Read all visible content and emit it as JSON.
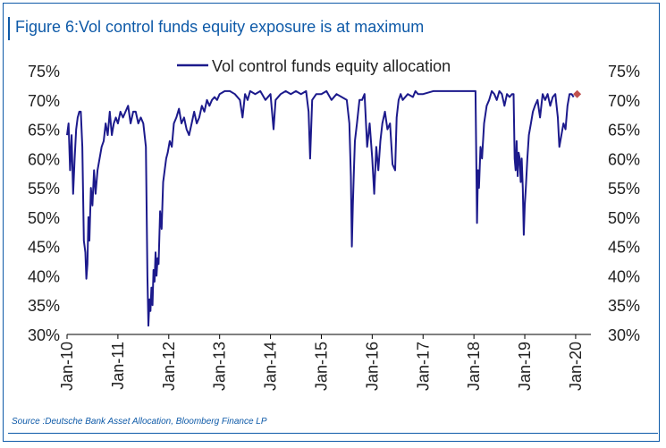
{
  "figure": {
    "title": "Figure 6:Vol control funds equity exposure is at maximum",
    "source": "Source :Deutsche Bank Asset Allocation, Bloomberg Finance LP"
  },
  "chart_data": {
    "type": "line",
    "title": "Figure 6:Vol control funds equity exposure is at maximum",
    "xlabel": "",
    "ylabel": "",
    "ylim": [
      30,
      75
    ],
    "y_ticks": [
      "30%",
      "35%",
      "40%",
      "45%",
      "50%",
      "55%",
      "60%",
      "65%",
      "70%",
      "75%"
    ],
    "y_tick_values": [
      30,
      35,
      40,
      45,
      50,
      55,
      60,
      65,
      70,
      75
    ],
    "x_ticks": [
      "Jan-10",
      "Jan-11",
      "Jan-12",
      "Jan-13",
      "Jan-14",
      "Jan-15",
      "Jan-16",
      "Jan-17",
      "Jan-18",
      "Jan-19",
      "Jan-20"
    ],
    "x_tick_values": [
      2010,
      2011,
      2012,
      2013,
      2014,
      2015,
      2016,
      2017,
      2018,
      2019,
      2020
    ],
    "xlim": [
      2010,
      2020.3
    ],
    "legend": {
      "position": "top-center"
    },
    "grid": false,
    "series": [
      {
        "name": "Vol control funds equity allocation",
        "color": "#1c1a8c",
        "x": [
          2010.0,
          2010.03,
          2010.06,
          2010.09,
          2010.12,
          2010.15,
          2010.18,
          2010.21,
          2010.24,
          2010.27,
          2010.3,
          2010.33,
          2010.36,
          2010.38,
          2010.4,
          2010.42,
          2010.44,
          2010.47,
          2010.5,
          2010.53,
          2010.56,
          2010.6,
          2010.64,
          2010.68,
          2010.72,
          2010.76,
          2010.8,
          2010.84,
          2010.88,
          2010.92,
          2010.96,
          2011.0,
          2011.05,
          2011.1,
          2011.15,
          2011.2,
          2011.25,
          2011.3,
          2011.35,
          2011.4,
          2011.45,
          2011.5,
          2011.55,
          2011.58,
          2011.6,
          2011.62,
          2011.64,
          2011.66,
          2011.68,
          2011.7,
          2011.72,
          2011.74,
          2011.76,
          2011.78,
          2011.8,
          2011.83,
          2011.86,
          2011.89,
          2011.92,
          2011.95,
          2011.98,
          2012.02,
          2012.06,
          2012.1,
          2012.15,
          2012.2,
          2012.25,
          2012.3,
          2012.35,
          2012.4,
          2012.45,
          2012.5,
          2012.55,
          2012.6,
          2012.65,
          2012.7,
          2012.75,
          2012.8,
          2012.85,
          2012.9,
          2012.95,
          2013.0,
          2013.1,
          2013.2,
          2013.3,
          2013.4,
          2013.45,
          2013.5,
          2013.55,
          2013.6,
          2013.7,
          2013.8,
          2013.9,
          2014.0,
          2014.06,
          2014.1,
          2014.2,
          2014.3,
          2014.4,
          2014.5,
          2014.6,
          2014.7,
          2014.75,
          2014.78,
          2014.82,
          2014.9,
          2015.0,
          2015.1,
          2015.2,
          2015.3,
          2015.4,
          2015.5,
          2015.55,
          2015.58,
          2015.6,
          2015.62,
          2015.64,
          2015.66,
          2015.7,
          2015.75,
          2015.8,
          2015.85,
          2015.9,
          2015.95,
          2016.0,
          2016.04,
          2016.08,
          2016.12,
          2016.16,
          2016.2,
          2016.25,
          2016.3,
          2016.35,
          2016.4,
          2016.45,
          2016.48,
          2016.52,
          2016.56,
          2016.6,
          2016.7,
          2016.8,
          2016.85,
          2016.9,
          2017.0,
          2017.2,
          2017.4,
          2017.6,
          2017.8,
          2018.0,
          2018.03,
          2018.06,
          2018.08,
          2018.1,
          2018.13,
          2018.16,
          2018.2,
          2018.25,
          2018.3,
          2018.35,
          2018.4,
          2018.45,
          2018.5,
          2018.55,
          2018.6,
          2018.65,
          2018.7,
          2018.75,
          2018.78,
          2018.8,
          2018.82,
          2018.84,
          2018.86,
          2018.88,
          2018.9,
          2018.92,
          2018.94,
          2018.96,
          2018.98,
          2019.0,
          2019.02,
          2019.05,
          2019.08,
          2019.12,
          2019.16,
          2019.2,
          2019.25,
          2019.3,
          2019.35,
          2019.4,
          2019.45,
          2019.5,
          2019.55,
          2019.6,
          2019.65,
          2019.68,
          2019.72,
          2019.76,
          2019.8,
          2019.84,
          2019.88,
          2019.92,
          2019.96
        ],
        "y": [
          64.0,
          66.0,
          58.0,
          64.0,
          54.0,
          60.0,
          65.0,
          67.0,
          68.0,
          68.0,
          62.0,
          46.0,
          44.0,
          39.5,
          42.0,
          50.0,
          46.0,
          55.0,
          52.0,
          58.0,
          54.0,
          58.0,
          60.0,
          62.0,
          63.0,
          66.0,
          64.0,
          68.0,
          64.0,
          66.0,
          67.0,
          66.0,
          68.0,
          67.0,
          68.0,
          69.0,
          66.0,
          68.0,
          68.0,
          66.0,
          67.0,
          66.0,
          62.0,
          40.0,
          31.5,
          36.0,
          34.0,
          38.0,
          35.0,
          41.0,
          39.0,
          44.0,
          40.0,
          43.0,
          42.0,
          51.0,
          48.0,
          56.0,
          58.0,
          60.0,
          61.0,
          63.0,
          62.0,
          66.0,
          67.0,
          68.5,
          66.0,
          67.0,
          65.0,
          64.0,
          66.0,
          68.0,
          66.0,
          67.0,
          69.0,
          68.0,
          70.0,
          69.0,
          70.0,
          70.5,
          70.0,
          71.0,
          71.5,
          71.5,
          71.0,
          70.0,
          67.0,
          71.0,
          70.0,
          71.5,
          71.0,
          71.5,
          70.0,
          71.0,
          65.0,
          70.0,
          71.0,
          71.5,
          71.0,
          71.5,
          71.0,
          71.5,
          68.0,
          60.0,
          70.0,
          71.0,
          71.0,
          71.5,
          70.0,
          71.0,
          70.5,
          70.0,
          66.0,
          57.0,
          45.0,
          52.0,
          58.0,
          63.0,
          66.0,
          70.0,
          70.0,
          71.0,
          62.0,
          66.0,
          60.0,
          54.0,
          62.0,
          58.0,
          63.0,
          66.0,
          68.0,
          65.0,
          66.0,
          59.0,
          58.0,
          67.0,
          70.0,
          71.0,
          70.0,
          71.0,
          70.5,
          71.5,
          71.0,
          71.0,
          71.5,
          71.5,
          71.5,
          71.5,
          71.5,
          71.5,
          49.0,
          58.0,
          55.0,
          62.0,
          60.0,
          66.0,
          69.0,
          70.0,
          71.5,
          71.0,
          70.0,
          71.5,
          71.0,
          69.0,
          71.0,
          70.5,
          71.0,
          71.0,
          60.0,
          58.0,
          63.0,
          57.0,
          61.0,
          60.0,
          56.0,
          60.0,
          55.0,
          47.0,
          52.0,
          55.0,
          60.0,
          64.0,
          66.0,
          68.0,
          69.0,
          70.0,
          67.0,
          71.0,
          70.0,
          71.0,
          69.0,
          70.5,
          71.0,
          67.0,
          62.0,
          64.0,
          66.0,
          65.0,
          69.0,
          71.0,
          71.0,
          70.5
        ]
      },
      {
        "name": "",
        "type": "marker",
        "color": "#c0504d",
        "x": [
          2020.03
        ],
        "y": [
          71.0
        ]
      }
    ]
  }
}
